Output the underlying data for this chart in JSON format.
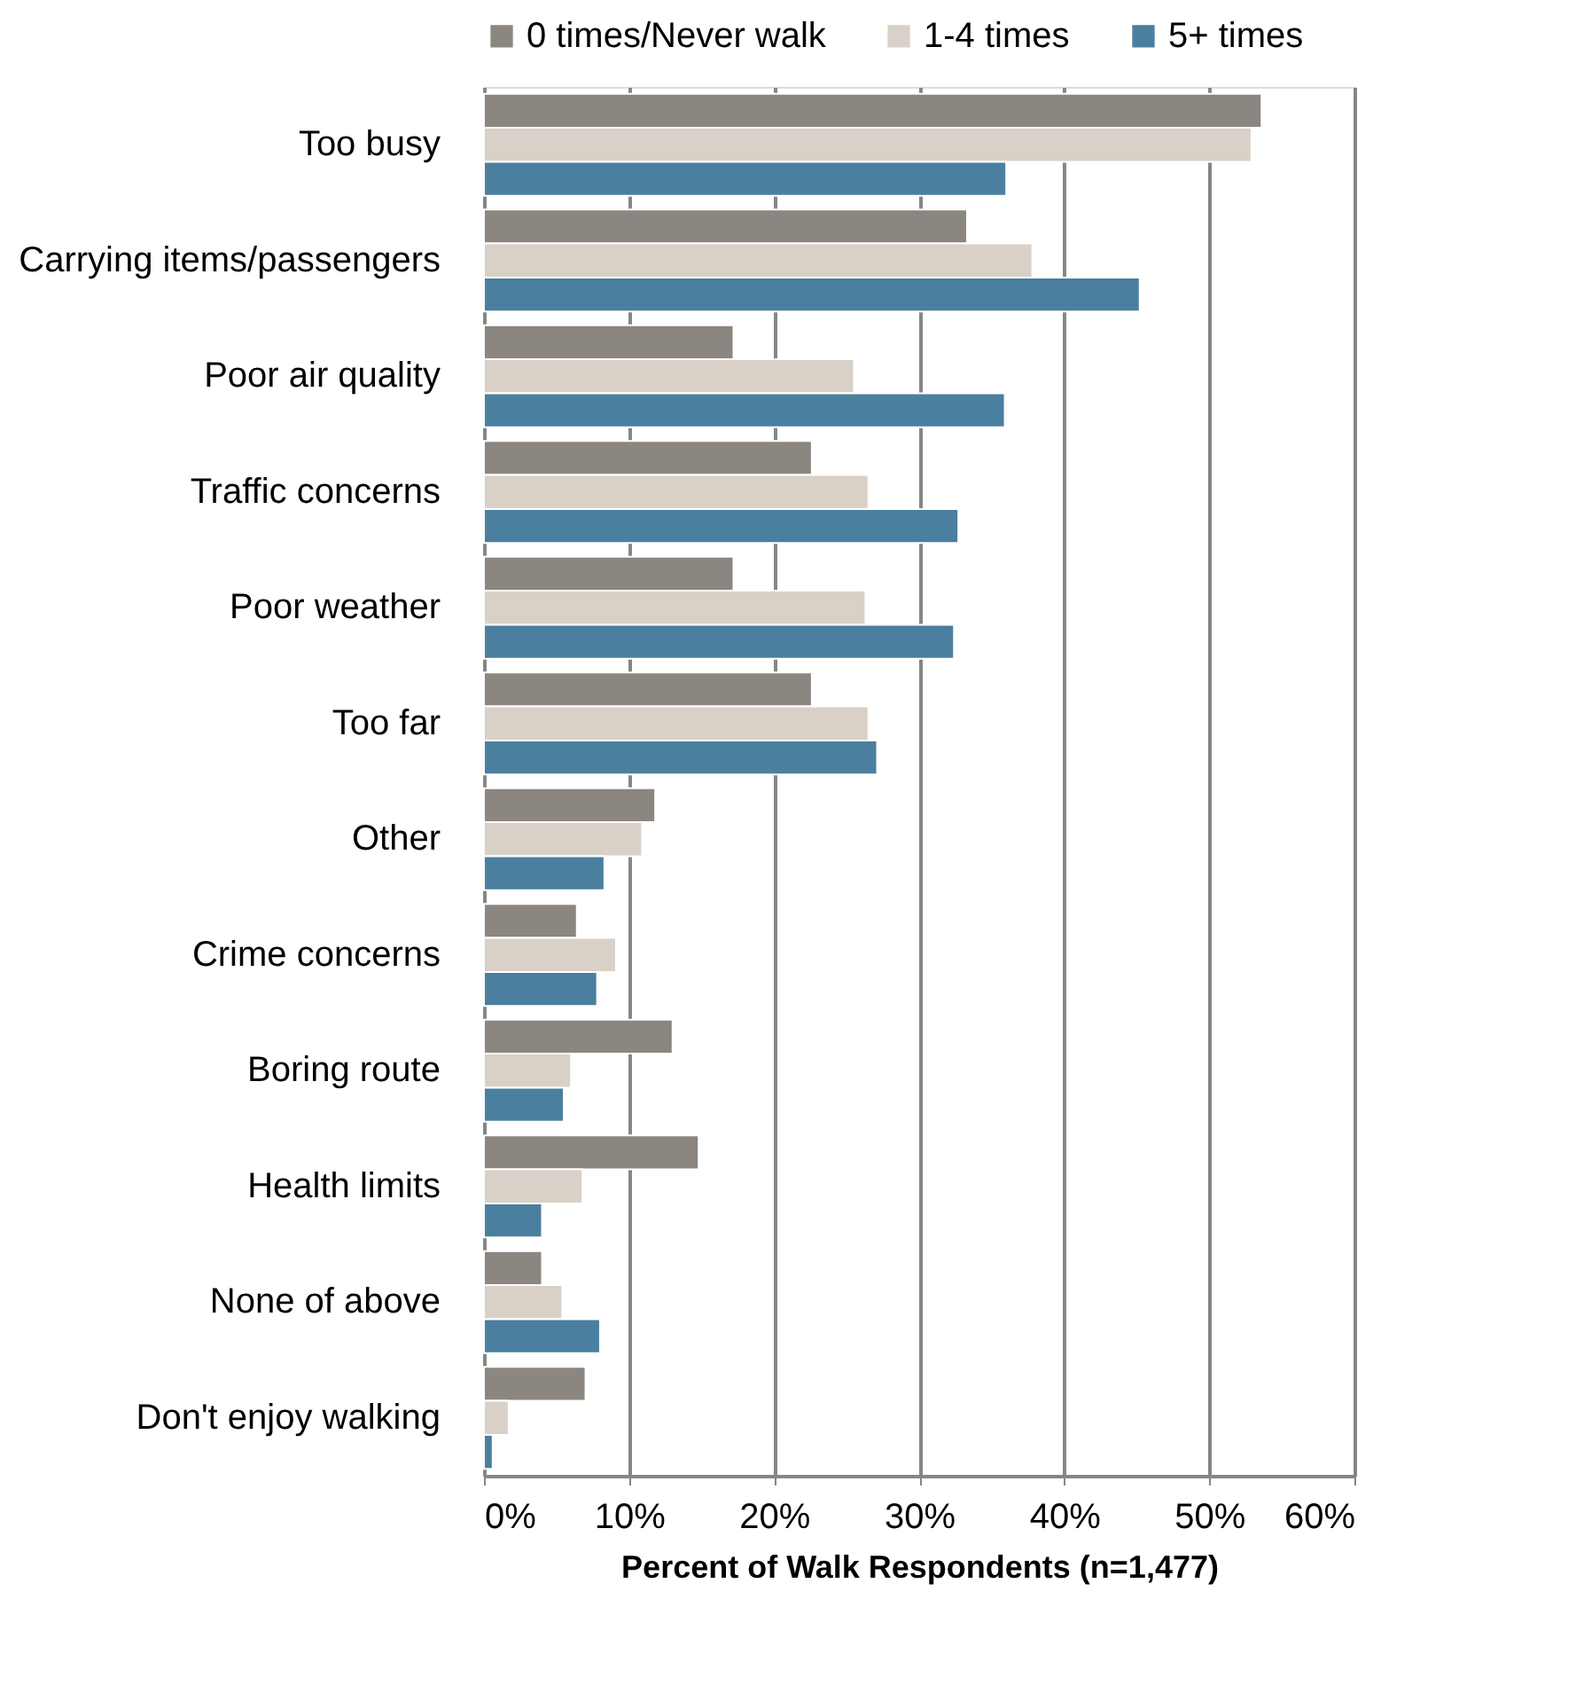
{
  "chart_data": {
    "type": "bar",
    "orientation": "horizontal",
    "xlabel": "Percent of Walk Respondents (n=1,477)",
    "categories": [
      "Too busy",
      "Carrying items/passengers",
      "Poor air quality",
      "Traffic concerns",
      "Poor weather",
      "Too far",
      "Other",
      "Crime concerns",
      "Boring route",
      "Health limits",
      "None of above",
      "Don't enjoy walking"
    ],
    "series": [
      {
        "name": "0 times/Never walk",
        "color": "#8b8680",
        "values": [
          53.6,
          33.3,
          17.2,
          22.6,
          17.2,
          22.6,
          11.8,
          6.4,
          13.0,
          14.8,
          4.0,
          7.0
        ]
      },
      {
        "name": "1-4 times",
        "color": "#d9d0c7",
        "values": [
          52.9,
          37.8,
          25.5,
          26.5,
          26.3,
          26.5,
          10.9,
          9.1,
          6.0,
          6.8,
          5.4,
          1.7
        ]
      },
      {
        "name": "5+ times",
        "color": "#4a7f9f",
        "values": [
          36.0,
          45.2,
          35.9,
          32.7,
          32.4,
          27.1,
          8.3,
          7.8,
          5.5,
          4.0,
          8.0,
          0.6
        ]
      }
    ],
    "xlim": [
      0,
      60
    ],
    "xticks": [
      {
        "value": 0,
        "label": "0%"
      },
      {
        "value": 10,
        "label": "10%"
      },
      {
        "value": 20,
        "label": "20%"
      },
      {
        "value": 30,
        "label": "30%"
      },
      {
        "value": 40,
        "label": "40%"
      },
      {
        "value": 50,
        "label": "50%"
      },
      {
        "value": 60,
        "label": "60%"
      }
    ],
    "grid": "x",
    "legend": "top"
  }
}
